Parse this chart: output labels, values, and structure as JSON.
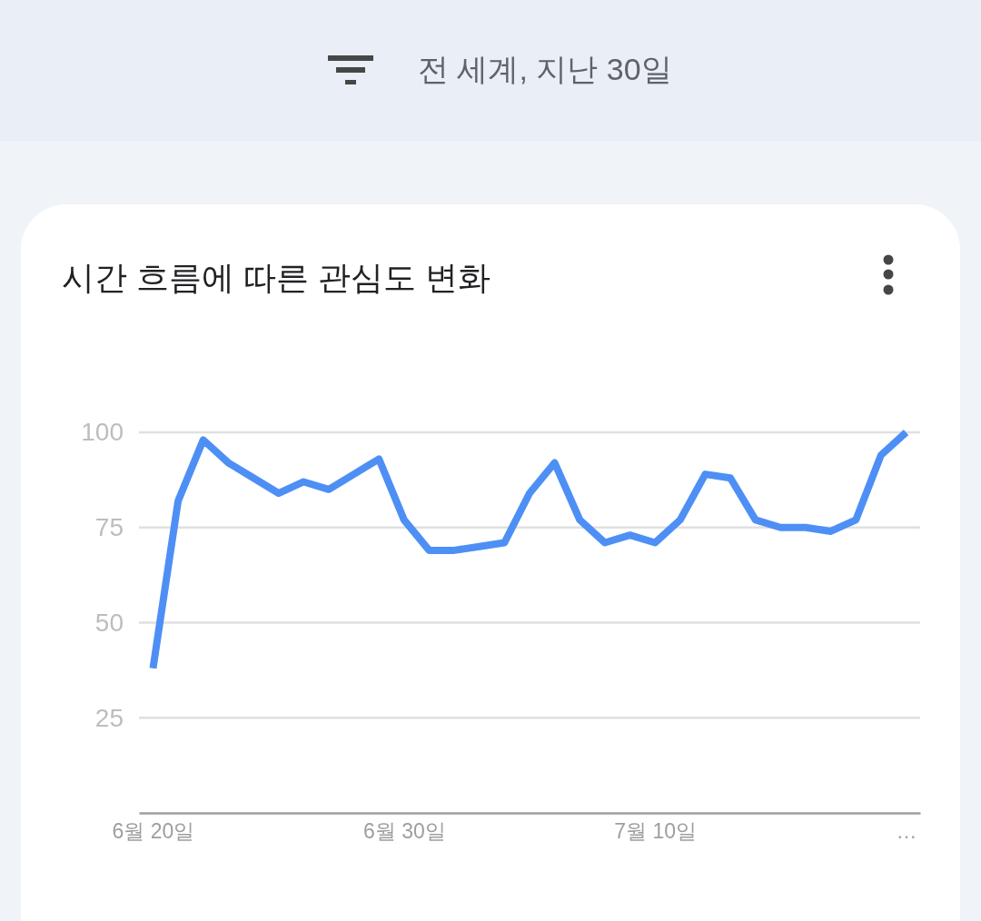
{
  "chart_data": {
    "type": "line",
    "subtitle": "전 세계, 지난 30일",
    "title": "시간 흐름에 따른 관심도 변화",
    "categories": [
      "6월 20일",
      null,
      null,
      null,
      null,
      null,
      null,
      null,
      null,
      null,
      "6월 30일",
      null,
      null,
      null,
      null,
      null,
      null,
      null,
      null,
      null,
      "7월 10일",
      null,
      null,
      null,
      null,
      null,
      null,
      null,
      null,
      null,
      "…"
    ],
    "series": [
      {
        "color": "#4e8ff5",
        "values": [
          38,
          82,
          98,
          92,
          88,
          84,
          87,
          85,
          89,
          93,
          77,
          69,
          69,
          70,
          71,
          84,
          92,
          77,
          71,
          73,
          71,
          77,
          89,
          88,
          77,
          75,
          75,
          74,
          77,
          94,
          100
        ]
      }
    ],
    "ylim": [
      0,
      100
    ],
    "yticks": [
      25,
      50,
      75,
      100
    ],
    "grid": "y",
    "marker": "none",
    "line_style": "solid"
  }
}
